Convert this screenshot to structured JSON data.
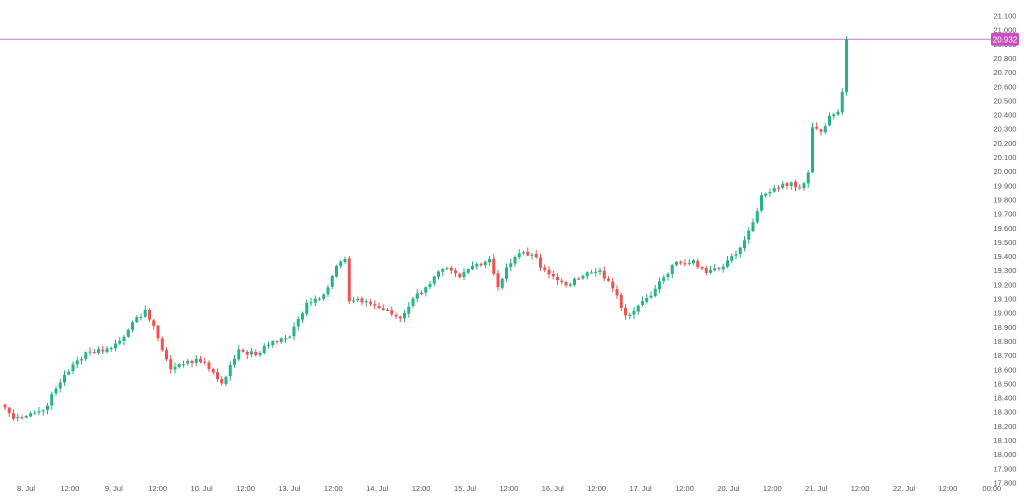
{
  "chart_data": {
    "type": "candlestick",
    "title": "",
    "xlabel": "",
    "ylabel": "",
    "ylim": [
      17800,
      21120
    ],
    "y_ticks": [
      17800,
      17900,
      18000,
      18100,
      18200,
      18300,
      18400,
      18500,
      18600,
      18700,
      18800,
      18900,
      19000,
      19100,
      19200,
      19300,
      19400,
      19500,
      19600,
      19700,
      19800,
      19900,
      20000,
      20100,
      20200,
      20300,
      20400,
      20500,
      20600,
      20700,
      20800,
      20900,
      21000,
      21100
    ],
    "x_ticks": [
      "8. Jul",
      "12:00",
      "9. Jul",
      "12:00",
      "10. Jul",
      "12:00",
      "13. Jul",
      "12:00",
      "14. Jul",
      "12:00",
      "15. Jul",
      "12:00",
      "16. Jul",
      "12:00",
      "17. Jul",
      "12:00",
      "20. Jul",
      "12:00",
      "21. Jul",
      "12:00",
      "22. Jul",
      "12:00",
      "00:00"
    ],
    "current_price": 20932,
    "current_price_label": "20.932",
    "colors": {
      "up": "#26b38a",
      "down": "#ef5350",
      "price_line": "#d273c9",
      "price_tag": "#c94fc0",
      "axis_text": "#555555"
    },
    "anchors": [
      {
        "i": 0,
        "v": 18330
      },
      {
        "i": 2,
        "v": 18250
      },
      {
        "i": 6,
        "v": 18290
      },
      {
        "i": 9,
        "v": 18310
      },
      {
        "i": 14,
        "v": 18560
      },
      {
        "i": 19,
        "v": 18720
      },
      {
        "i": 25,
        "v": 18750
      },
      {
        "i": 29,
        "v": 18880
      },
      {
        "i": 33,
        "v": 19020
      },
      {
        "i": 36,
        "v": 18820
      },
      {
        "i": 39,
        "v": 18600
      },
      {
        "i": 43,
        "v": 18660
      },
      {
        "i": 47,
        "v": 18650
      },
      {
        "i": 51,
        "v": 18500
      },
      {
        "i": 55,
        "v": 18740
      },
      {
        "i": 59,
        "v": 18700
      },
      {
        "i": 63,
        "v": 18800
      },
      {
        "i": 67,
        "v": 18830
      },
      {
        "i": 71,
        "v": 19070
      },
      {
        "i": 75,
        "v": 19130
      },
      {
        "i": 78,
        "v": 19330
      },
      {
        "i": 80,
        "v": 19380
      },
      {
        "i": 81,
        "v": 19080
      },
      {
        "i": 85,
        "v": 19080
      },
      {
        "i": 89,
        "v": 19020
      },
      {
        "i": 93,
        "v": 18960
      },
      {
        "i": 96,
        "v": 19100
      },
      {
        "i": 99,
        "v": 19180
      },
      {
        "i": 103,
        "v": 19310
      },
      {
        "i": 107,
        "v": 19250
      },
      {
        "i": 110,
        "v": 19330
      },
      {
        "i": 114,
        "v": 19380
      },
      {
        "i": 116,
        "v": 19180
      },
      {
        "i": 118,
        "v": 19320
      },
      {
        "i": 121,
        "v": 19420
      },
      {
        "i": 124,
        "v": 19410
      },
      {
        "i": 127,
        "v": 19300
      },
      {
        "i": 130,
        "v": 19230
      },
      {
        "i": 133,
        "v": 19200
      },
      {
        "i": 136,
        "v": 19260
      },
      {
        "i": 140,
        "v": 19300
      },
      {
        "i": 143,
        "v": 19170
      },
      {
        "i": 146,
        "v": 18980
      },
      {
        "i": 149,
        "v": 19050
      },
      {
        "i": 152,
        "v": 19120
      },
      {
        "i": 155,
        "v": 19250
      },
      {
        "i": 158,
        "v": 19360
      },
      {
        "i": 162,
        "v": 19370
      },
      {
        "i": 165,
        "v": 19280
      },
      {
        "i": 168,
        "v": 19310
      },
      {
        "i": 170,
        "v": 19370
      },
      {
        "i": 173,
        "v": 19460
      },
      {
        "i": 176,
        "v": 19640
      },
      {
        "i": 178,
        "v": 19830
      },
      {
        "i": 181,
        "v": 19880
      },
      {
        "i": 185,
        "v": 19920
      },
      {
        "i": 187,
        "v": 19880
      },
      {
        "i": 189,
        "v": 19990
      },
      {
        "i": 190,
        "v": 20310
      },
      {
        "i": 192,
        "v": 20280
      },
      {
        "i": 194,
        "v": 20390
      },
      {
        "i": 196,
        "v": 20420
      },
      {
        "i": 197,
        "v": 20560
      },
      {
        "i": 198,
        "v": 20932
      }
    ]
  }
}
